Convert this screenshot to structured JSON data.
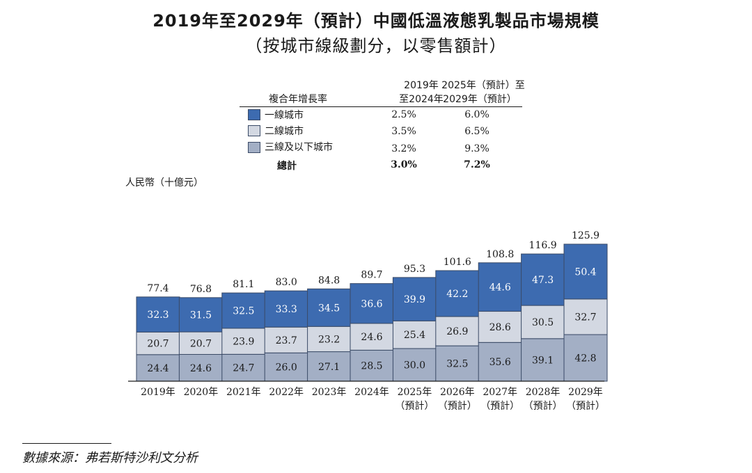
{
  "title_line1": "2019年至2029年（預計）中國低溫液態乳製品市場規模",
  "title_line2": "（按城市線級劃分，以零售額計）",
  "cagr_table": {
    "header_label": "複合年增長率",
    "col1_header_line1": "2019年",
    "col1_header_line2": "至2024年",
    "col2_header_line1": "2025年（預計）至",
    "col2_header_line2": "2029年（預計）",
    "rows": [
      {
        "label": "一線城市",
        "color": "#3d6bb0",
        "v1": "2.5%",
        "v2": "6.0%"
      },
      {
        "label": "二線城市",
        "color": "#d3d8e2",
        "v1": "3.5%",
        "v2": "6.5%"
      },
      {
        "label": "三線及以下城市",
        "color": "#a3afc5",
        "v1": "3.2%",
        "v2": "9.3%"
      }
    ],
    "total": {
      "label": "總計",
      "v1": "3.0%",
      "v2": "7.2%"
    }
  },
  "unit_label": "人民幣（十億元）",
  "source_text": "數據來源：弗若斯特沙利文分析",
  "chart_data": {
    "type": "bar",
    "stacked": true,
    "title": "2019年至2029年（預計）中國低溫液態乳製品市場規模",
    "ylabel": "人民幣（十億元）",
    "ylim": [
      0,
      130
    ],
    "categories": [
      "2019年",
      "2020年",
      "2021年",
      "2022年",
      "2023年",
      "2024年",
      "2025年",
      "2026年",
      "2027年",
      "2028年",
      "2029年"
    ],
    "category_sublabels": [
      "",
      "",
      "",
      "",
      "",
      "",
      "（預計）",
      "（預計）",
      "（預計）",
      "（預計）",
      "（預計）"
    ],
    "series": [
      {
        "name": "三線及以下城市",
        "color": "#a3afc5",
        "label_color": "#1a1a1a",
        "values": [
          24.4,
          24.6,
          24.7,
          26.0,
          27.1,
          28.5,
          30.0,
          32.5,
          35.6,
          39.1,
          42.8
        ],
        "labels": [
          "24.4",
          "24.6",
          "24.7",
          "26.0",
          "27.1",
          "28.5",
          "30.0",
          "32.5",
          "35.6",
          "39.1",
          "42.8"
        ]
      },
      {
        "name": "二線城市",
        "color": "#d3d8e2",
        "label_color": "#1a1a1a",
        "values": [
          20.7,
          20.7,
          23.9,
          23.7,
          23.2,
          24.6,
          25.4,
          26.9,
          28.6,
          30.5,
          32.7
        ],
        "labels": [
          "20.7",
          "20.7",
          "23.9",
          "23.7",
          "23.2",
          "24.6",
          "25.4",
          "26.9",
          "28.6",
          "30.5",
          "32.7"
        ]
      },
      {
        "name": "一線城市",
        "color": "#3d6bb0",
        "label_color": "#ffffff",
        "values": [
          32.3,
          31.5,
          32.5,
          33.3,
          34.5,
          36.6,
          39.9,
          42.2,
          44.6,
          47.3,
          50.4
        ],
        "labels": [
          "32.3",
          "31.5",
          "32.5",
          "33.3",
          "34.5",
          "36.6",
          "39.9",
          "42.2",
          "44.6",
          "47.3",
          "50.4"
        ]
      }
    ],
    "totals": [
      77.4,
      76.8,
      81.1,
      83.0,
      84.8,
      89.7,
      95.3,
      101.6,
      108.8,
      116.9,
      125.9
    ],
    "total_labels": [
      "77.4",
      "76.8",
      "81.1",
      "83.0",
      "84.8",
      "89.7",
      "95.3",
      "101.6",
      "108.8",
      "116.9",
      "125.9"
    ]
  }
}
